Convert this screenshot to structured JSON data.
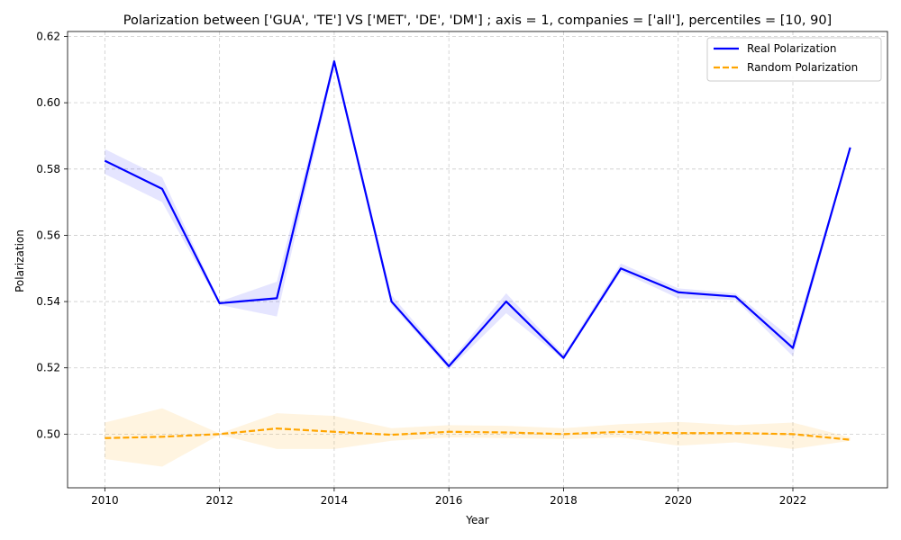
{
  "chart_data": {
    "type": "line",
    "title": "Polarization between ['GUA', 'TE'] VS ['MET', 'DE', 'DM'] ; axis = 1, companies = ['all'], percentiles = [10, 90]",
    "xlabel": "Year",
    "ylabel": "Polarization",
    "xlim": [
      2009.35,
      2023.65
    ],
    "ylim": [
      0.4838,
      0.6215
    ],
    "xticks": [
      2010,
      2012,
      2014,
      2016,
      2018,
      2020,
      2022
    ],
    "yticks": [
      0.5,
      0.52,
      0.54,
      0.56,
      0.58,
      0.6,
      0.62
    ],
    "xtick_labels": [
      "2010",
      "2012",
      "2014",
      "2016",
      "2018",
      "2020",
      "2022"
    ],
    "ytick_labels": [
      "0.50",
      "0.52",
      "0.54",
      "0.56",
      "0.58",
      "0.60",
      "0.62"
    ],
    "grid": true,
    "legend_position": "top-right",
    "x": [
      2010,
      2011,
      2012,
      2013,
      2014,
      2015,
      2016,
      2017,
      2018,
      2019,
      2020,
      2021,
      2022,
      2023
    ],
    "series": [
      {
        "name": "Real Polarization",
        "color": "#0000ff",
        "dash": "solid",
        "values": [
          0.5825,
          0.574,
          0.5395,
          0.541,
          0.6125,
          0.54,
          0.5205,
          0.54,
          0.523,
          0.55,
          0.5428,
          0.5415,
          0.526,
          0.5865
        ],
        "band_low": [
          0.5785,
          0.57,
          0.539,
          0.5355,
          0.611,
          0.539,
          0.5195,
          0.5365,
          0.5225,
          0.549,
          0.541,
          0.5405,
          0.5235,
          0.586
        ],
        "band_high": [
          0.586,
          0.5775,
          0.54,
          0.546,
          0.6135,
          0.542,
          0.5215,
          0.5425,
          0.524,
          0.5515,
          0.544,
          0.5425,
          0.5285,
          0.587
        ],
        "band_color": "#0000ff",
        "band_opacity": 0.1
      },
      {
        "name": "Random Polarization",
        "color": "#ffa500",
        "dash": "dashed",
        "values": [
          0.4988,
          0.4992,
          0.5,
          0.5017,
          0.5007,
          0.4998,
          0.5007,
          0.5005,
          0.5,
          0.5007,
          0.5003,
          0.5003,
          0.5,
          0.4983
        ],
        "band_low": [
          0.4925,
          0.4902,
          0.4998,
          0.4955,
          0.4955,
          0.498,
          0.499,
          0.4988,
          0.4985,
          0.499,
          0.4965,
          0.4975,
          0.4955,
          0.498
        ],
        "band_high": [
          0.5035,
          0.5078,
          0.5002,
          0.5063,
          0.5055,
          0.5018,
          0.5027,
          0.5025,
          0.5018,
          0.503,
          0.5037,
          0.5027,
          0.5035,
          0.499
        ],
        "band_color": "#ffa500",
        "band_opacity": 0.12
      }
    ]
  }
}
